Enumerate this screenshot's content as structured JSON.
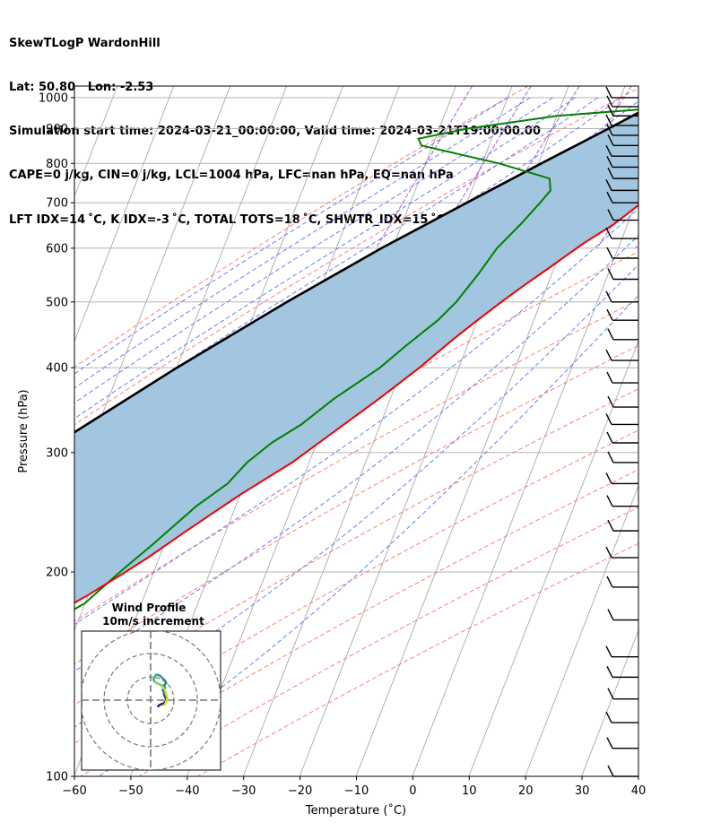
{
  "header": {
    "line1": "SkewTLogP WardonHill",
    "line2": "Lat: 50.80   Lon: -2.53",
    "line3": "Simulation start time: 2024-03-21_00:00:00, Valid time: 2024-03-21T19:00:00.00",
    "line4": "CAPE=0 j/kg, CIN=0 j/kg, LCL=1004 hPa, LFC=nan hPa, EQ=nan hPa",
    "line5": "LFT IDX=14 ˚C, K IDX=-3 ˚C, TOTAL TOTS=18 ˚C, SHWTR_IDX=15 ˚C"
  },
  "colors": {
    "temperature": "#ee0000",
    "dewpoint": "#008000",
    "parcel": "#000000",
    "shading": "#a2c6df",
    "dry_adiabat": "#ff6666",
    "moist_adiabat": "#5566ee",
    "mixing_ratio": "#9933cc",
    "isotherm": "#aaaaaa",
    "isobar": "#aaaaaa"
  },
  "chart_data": [
    {
      "type": "line",
      "subtype": "skewT-logP",
      "xlabel": "Temperature (˚C)",
      "ylabel": "Pressure (hPa)",
      "xlim": [
        -60,
        40
      ],
      "ylim": [
        1040,
        100
      ],
      "y_scale": "log",
      "x_ticks": [
        "−60",
        "−50",
        "−40",
        "−30",
        "−20",
        "−10",
        "0",
        "10",
        "20",
        "30",
        "40"
      ],
      "y_ticks": [
        "100",
        "200",
        "300",
        "400",
        "500",
        "600",
        "700",
        "800",
        "900",
        "1000"
      ],
      "grid": true,
      "series": [
        {
          "key": "temperature",
          "points": [
            [
              1015,
              10.5
            ],
            [
              1005,
              11.5
            ],
            [
              990,
              12.5
            ],
            [
              960,
              11
            ],
            [
              940,
              11
            ],
            [
              910,
              13
            ],
            [
              880,
              14
            ],
            [
              820,
              14.5
            ],
            [
              780,
              14
            ],
            [
              740,
              13
            ],
            [
              700,
              11
            ],
            [
              650,
              7.5
            ],
            [
              610,
              3.5
            ],
            [
              560,
              -1
            ],
            [
              530,
              -4
            ],
            [
              500,
              -7
            ],
            [
              470,
              -10
            ],
            [
              440,
              -13
            ],
            [
              400,
              -17
            ],
            [
              360,
              -22
            ],
            [
              320,
              -28
            ],
            [
              290,
              -33
            ],
            [
              260,
              -40
            ],
            [
              230,
              -47
            ],
            [
              210,
              -52
            ],
            [
              200,
              -55
            ],
            [
              185,
              -60
            ],
            [
              175,
              -64
            ],
            [
              165,
              -68
            ],
            [
              155,
              -68.5
            ],
            [
              150,
              -68.5
            ],
            [
              140,
              -68
            ],
            [
              130,
              -67
            ],
            [
              120,
              -68
            ],
            [
              112,
              -70
            ],
            [
              106,
              -70.5
            ],
            [
              100,
              -70.5
            ]
          ]
        },
        {
          "key": "dewpoint",
          "points": [
            [
              1010,
              9
            ],
            [
              990,
              8
            ],
            [
              960,
              4
            ],
            [
              940,
              -10
            ],
            [
              900,
              -25
            ],
            [
              870,
              -33
            ],
            [
              850,
              -32
            ],
            [
              800,
              -17
            ],
            [
              760,
              -7
            ],
            [
              730,
              -6
            ],
            [
              700,
              -7
            ],
            [
              650,
              -9
            ],
            [
              600,
              -11.5
            ],
            [
              550,
              -13
            ],
            [
              500,
              -15
            ],
            [
              470,
              -17
            ],
            [
              430,
              -21
            ],
            [
              400,
              -24
            ],
            [
              360,
              -30
            ],
            [
              330,
              -34
            ],
            [
              310,
              -38
            ],
            [
              290,
              -41
            ],
            [
              270,
              -43
            ],
            [
              250,
              -47
            ],
            [
              220,
              -52
            ],
            [
              200,
              -56
            ],
            [
              180,
              -60
            ],
            [
              170,
              -64
            ],
            [
              160,
              -68
            ],
            [
              150,
              -71
            ],
            [
              140,
              -73
            ],
            [
              130,
              -73
            ],
            [
              120,
              -76
            ],
            [
              110,
              -79
            ],
            [
              100,
              -81
            ]
          ]
        },
        {
          "key": "parcel",
          "points": [
            [
              1010,
              9
            ],
            [
              900,
              0
            ],
            [
              800,
              -9.5
            ],
            [
              700,
              -20
            ],
            [
              600,
              -32
            ],
            [
              500,
              -45
            ],
            [
              400,
              -60
            ],
            [
              300,
              -78
            ],
            [
              250,
              -90
            ],
            [
              200,
              -103
            ],
            [
              150,
              -115
            ],
            [
              100,
              -128
            ]
          ]
        }
      ],
      "shading": "between parcel and temperature",
      "wind_barbs": {
        "pressures": [
          1000,
          970,
          940,
          910,
          880,
          850,
          820,
          790,
          760,
          730,
          700,
          660,
          620,
          580,
          540,
          500,
          470,
          440,
          410,
          380,
          350,
          330,
          310,
          290,
          270,
          250,
          230,
          210,
          190,
          170,
          150,
          140,
          130,
          120,
          110,
          100
        ]
      }
    },
    {
      "type": "line",
      "subtype": "hodograph",
      "title": "Wind Profile",
      "subtitle": "10m/s increment",
      "rings": [
        10,
        20,
        30
      ],
      "grid": true,
      "points": [
        [
          -9,
          3
        ],
        [
          -8,
          2
        ],
        [
          -6,
          1
        ],
        [
          -5,
          1
        ],
        [
          -3,
          -1
        ],
        [
          -2,
          -3
        ],
        [
          -3,
          -5
        ],
        [
          -4,
          -7
        ],
        [
          -4,
          -9
        ],
        [
          -5,
          -11
        ],
        [
          -3,
          -13
        ],
        [
          -4,
          -15
        ],
        [
          -2,
          -17
        ],
        [
          -3,
          -19
        ],
        [
          -5,
          -21
        ],
        [
          -7,
          -23
        ],
        [
          -9,
          -24
        ],
        [
          -11,
          -24
        ],
        [
          -12,
          -22
        ],
        [
          -13,
          -20
        ],
        [
          -12,
          -18
        ],
        [
          -10,
          -17
        ],
        [
          -8,
          -16
        ],
        [
          -6,
          -15
        ],
        [
          -4,
          -13
        ],
        [
          -3,
          -10
        ],
        [
          -2,
          -7
        ],
        [
          -1,
          -4
        ],
        [
          -2,
          -1
        ],
        [
          -3,
          1
        ],
        [
          -4,
          2
        ]
      ]
    }
  ]
}
